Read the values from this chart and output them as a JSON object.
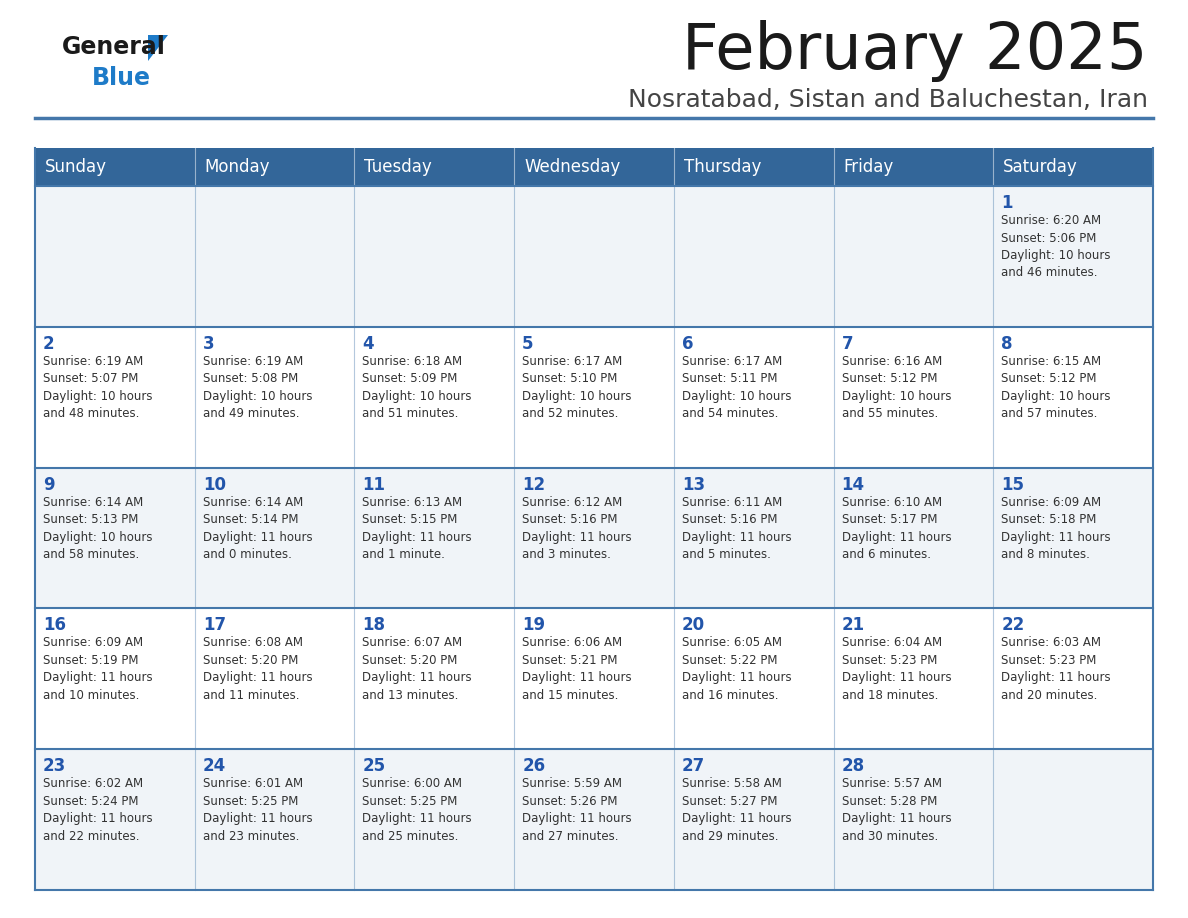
{
  "title": "February 2025",
  "subtitle": "Nosratabad, Sistan and Baluchestan, Iran",
  "days_of_week": [
    "Sunday",
    "Monday",
    "Tuesday",
    "Wednesday",
    "Thursday",
    "Friday",
    "Saturday"
  ],
  "header_bg": "#336699",
  "header_text": "#FFFFFF",
  "row_bg_light": "#F0F4F8",
  "row_bg_white": "#FFFFFF",
  "cell_border_color": "#4477AA",
  "day_number_color": "#2255AA",
  "text_color": "#333333",
  "title_color": "#1A1A1A",
  "subtitle_color": "#444444",
  "logo_general_color": "#1A1A1A",
  "logo_blue_color": "#1E7BC8",
  "logo_triangle_color": "#1E7BC8",
  "calendar_data": [
    [
      {
        "day": null,
        "info": ""
      },
      {
        "day": null,
        "info": ""
      },
      {
        "day": null,
        "info": ""
      },
      {
        "day": null,
        "info": ""
      },
      {
        "day": null,
        "info": ""
      },
      {
        "day": null,
        "info": ""
      },
      {
        "day": 1,
        "info": "Sunrise: 6:20 AM\nSunset: 5:06 PM\nDaylight: 10 hours\nand 46 minutes."
      }
    ],
    [
      {
        "day": 2,
        "info": "Sunrise: 6:19 AM\nSunset: 5:07 PM\nDaylight: 10 hours\nand 48 minutes."
      },
      {
        "day": 3,
        "info": "Sunrise: 6:19 AM\nSunset: 5:08 PM\nDaylight: 10 hours\nand 49 minutes."
      },
      {
        "day": 4,
        "info": "Sunrise: 6:18 AM\nSunset: 5:09 PM\nDaylight: 10 hours\nand 51 minutes."
      },
      {
        "day": 5,
        "info": "Sunrise: 6:17 AM\nSunset: 5:10 PM\nDaylight: 10 hours\nand 52 minutes."
      },
      {
        "day": 6,
        "info": "Sunrise: 6:17 AM\nSunset: 5:11 PM\nDaylight: 10 hours\nand 54 minutes."
      },
      {
        "day": 7,
        "info": "Sunrise: 6:16 AM\nSunset: 5:12 PM\nDaylight: 10 hours\nand 55 minutes."
      },
      {
        "day": 8,
        "info": "Sunrise: 6:15 AM\nSunset: 5:12 PM\nDaylight: 10 hours\nand 57 minutes."
      }
    ],
    [
      {
        "day": 9,
        "info": "Sunrise: 6:14 AM\nSunset: 5:13 PM\nDaylight: 10 hours\nand 58 minutes."
      },
      {
        "day": 10,
        "info": "Sunrise: 6:14 AM\nSunset: 5:14 PM\nDaylight: 11 hours\nand 0 minutes."
      },
      {
        "day": 11,
        "info": "Sunrise: 6:13 AM\nSunset: 5:15 PM\nDaylight: 11 hours\nand 1 minute."
      },
      {
        "day": 12,
        "info": "Sunrise: 6:12 AM\nSunset: 5:16 PM\nDaylight: 11 hours\nand 3 minutes."
      },
      {
        "day": 13,
        "info": "Sunrise: 6:11 AM\nSunset: 5:16 PM\nDaylight: 11 hours\nand 5 minutes."
      },
      {
        "day": 14,
        "info": "Sunrise: 6:10 AM\nSunset: 5:17 PM\nDaylight: 11 hours\nand 6 minutes."
      },
      {
        "day": 15,
        "info": "Sunrise: 6:09 AM\nSunset: 5:18 PM\nDaylight: 11 hours\nand 8 minutes."
      }
    ],
    [
      {
        "day": 16,
        "info": "Sunrise: 6:09 AM\nSunset: 5:19 PM\nDaylight: 11 hours\nand 10 minutes."
      },
      {
        "day": 17,
        "info": "Sunrise: 6:08 AM\nSunset: 5:20 PM\nDaylight: 11 hours\nand 11 minutes."
      },
      {
        "day": 18,
        "info": "Sunrise: 6:07 AM\nSunset: 5:20 PM\nDaylight: 11 hours\nand 13 minutes."
      },
      {
        "day": 19,
        "info": "Sunrise: 6:06 AM\nSunset: 5:21 PM\nDaylight: 11 hours\nand 15 minutes."
      },
      {
        "day": 20,
        "info": "Sunrise: 6:05 AM\nSunset: 5:22 PM\nDaylight: 11 hours\nand 16 minutes."
      },
      {
        "day": 21,
        "info": "Sunrise: 6:04 AM\nSunset: 5:23 PM\nDaylight: 11 hours\nand 18 minutes."
      },
      {
        "day": 22,
        "info": "Sunrise: 6:03 AM\nSunset: 5:23 PM\nDaylight: 11 hours\nand 20 minutes."
      }
    ],
    [
      {
        "day": 23,
        "info": "Sunrise: 6:02 AM\nSunset: 5:24 PM\nDaylight: 11 hours\nand 22 minutes."
      },
      {
        "day": 24,
        "info": "Sunrise: 6:01 AM\nSunset: 5:25 PM\nDaylight: 11 hours\nand 23 minutes."
      },
      {
        "day": 25,
        "info": "Sunrise: 6:00 AM\nSunset: 5:25 PM\nDaylight: 11 hours\nand 25 minutes."
      },
      {
        "day": 26,
        "info": "Sunrise: 5:59 AM\nSunset: 5:26 PM\nDaylight: 11 hours\nand 27 minutes."
      },
      {
        "day": 27,
        "info": "Sunrise: 5:58 AM\nSunset: 5:27 PM\nDaylight: 11 hours\nand 29 minutes."
      },
      {
        "day": 28,
        "info": "Sunrise: 5:57 AM\nSunset: 5:28 PM\nDaylight: 11 hours\nand 30 minutes."
      },
      {
        "day": null,
        "info": ""
      }
    ]
  ]
}
